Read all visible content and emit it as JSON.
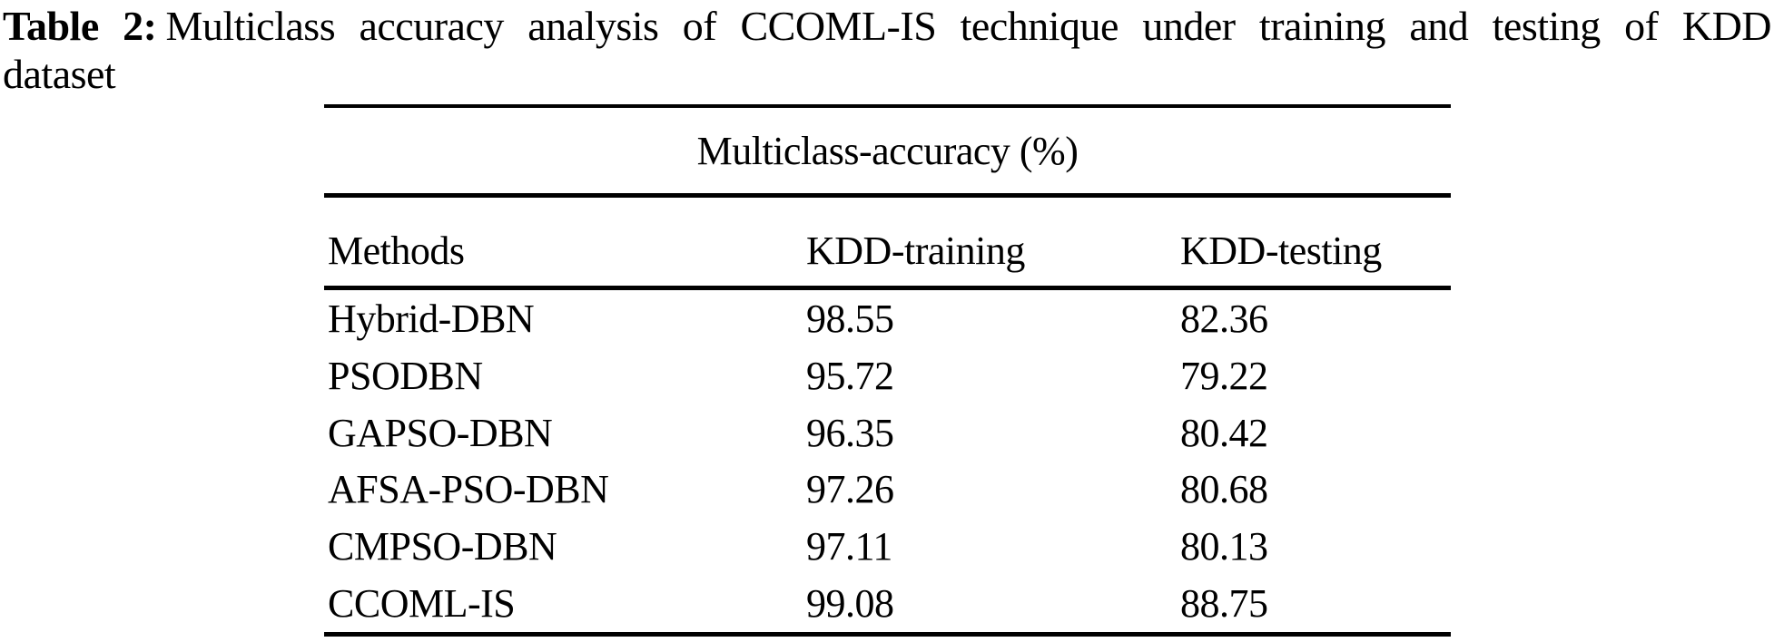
{
  "caption": {
    "label": "Table 2:",
    "line1_rest": "Multiclass accuracy analysis of CCOML-IS technique under training and testing of KDD",
    "line2": "dataset"
  },
  "table": {
    "span_header": "Multiclass-accuracy (%)",
    "columns": [
      "Methods",
      "KDD-training",
      "KDD-testing"
    ],
    "rows": [
      {
        "method": "Hybrid-DBN",
        "kdd_training": "98.55",
        "kdd_testing": "82.36"
      },
      {
        "method": "PSODBN",
        "kdd_training": "95.72",
        "kdd_testing": "79.22"
      },
      {
        "method": "GAPSO-DBN",
        "kdd_training": "96.35",
        "kdd_testing": "80.42"
      },
      {
        "method": "AFSA-PSO-DBN",
        "kdd_training": "97.26",
        "kdd_testing": "80.68"
      },
      {
        "method": "CMPSO-DBN",
        "kdd_training": "97.11",
        "kdd_testing": "80.13"
      },
      {
        "method": "CCOML-IS",
        "kdd_training": "99.08",
        "kdd_testing": "88.75"
      }
    ]
  },
  "colors": {
    "background": "#ffffff",
    "text": "#000000",
    "rule": "#000000"
  }
}
